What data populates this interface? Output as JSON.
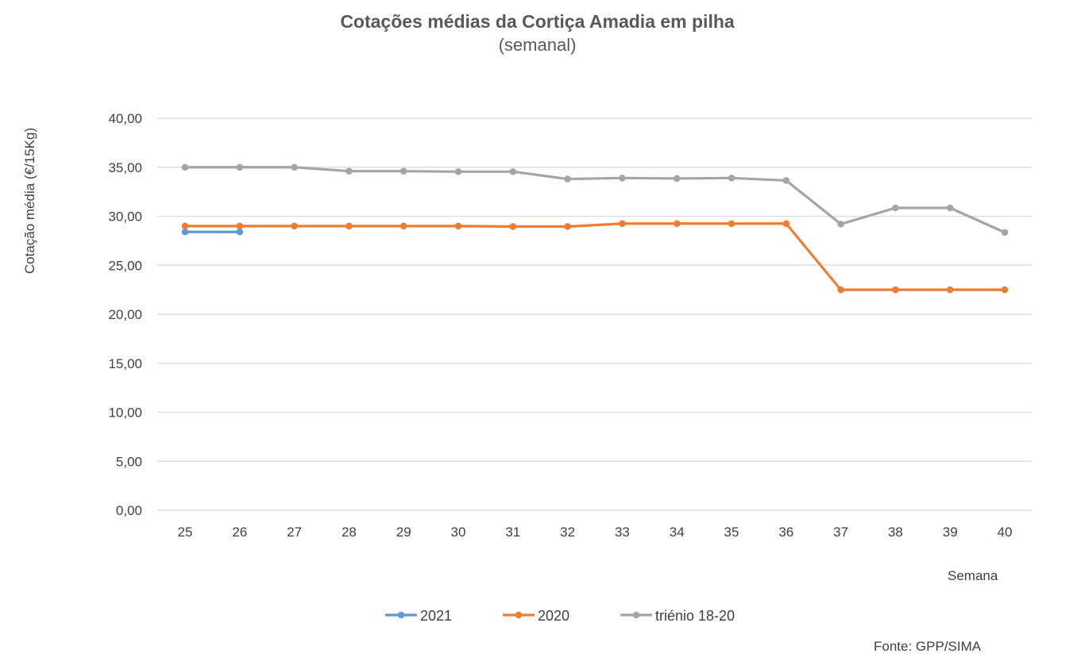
{
  "chart_data": {
    "type": "line",
    "title": "Cotações médias da Cortiça Amadia em pilha",
    "subtitle": "(semanal)",
    "ylabel": "Cotação média (€/15Kg)",
    "xlabel": "Semana",
    "source": "Fonte: GPP/SIMA",
    "ylim": [
      0,
      40
    ],
    "yticks": [
      "0,00",
      "5,00",
      "10,00",
      "15,00",
      "20,00",
      "25,00",
      "30,00",
      "35,00",
      "40,00"
    ],
    "ytick_values": [
      0,
      5,
      10,
      15,
      20,
      25,
      30,
      35,
      40
    ],
    "categories": [
      "25",
      "26",
      "27",
      "28",
      "29",
      "30",
      "31",
      "32",
      "33",
      "34",
      "35",
      "36",
      "37",
      "38",
      "39",
      "40"
    ],
    "grid": true,
    "legend_position": "bottom",
    "series": [
      {
        "name": "2021",
        "color": "#5B9BD5",
        "values": [
          28.4,
          28.4,
          null,
          null,
          null,
          null,
          null,
          null,
          null,
          null,
          null,
          null,
          null,
          null,
          null,
          null
        ]
      },
      {
        "name": "2020",
        "color": "#ED7D31",
        "values": [
          29.0,
          29.0,
          29.0,
          29.0,
          29.0,
          29.0,
          28.95,
          28.95,
          29.25,
          29.25,
          29.25,
          29.25,
          22.5,
          22.5,
          22.5,
          22.5
        ]
      },
      {
        "name": "triénio 18-20",
        "color": "#A5A5A5",
        "values": [
          35.0,
          35.0,
          35.0,
          34.6,
          34.6,
          34.55,
          34.55,
          33.8,
          33.9,
          33.85,
          33.9,
          33.65,
          29.2,
          30.85,
          30.85,
          28.35
        ]
      }
    ]
  }
}
